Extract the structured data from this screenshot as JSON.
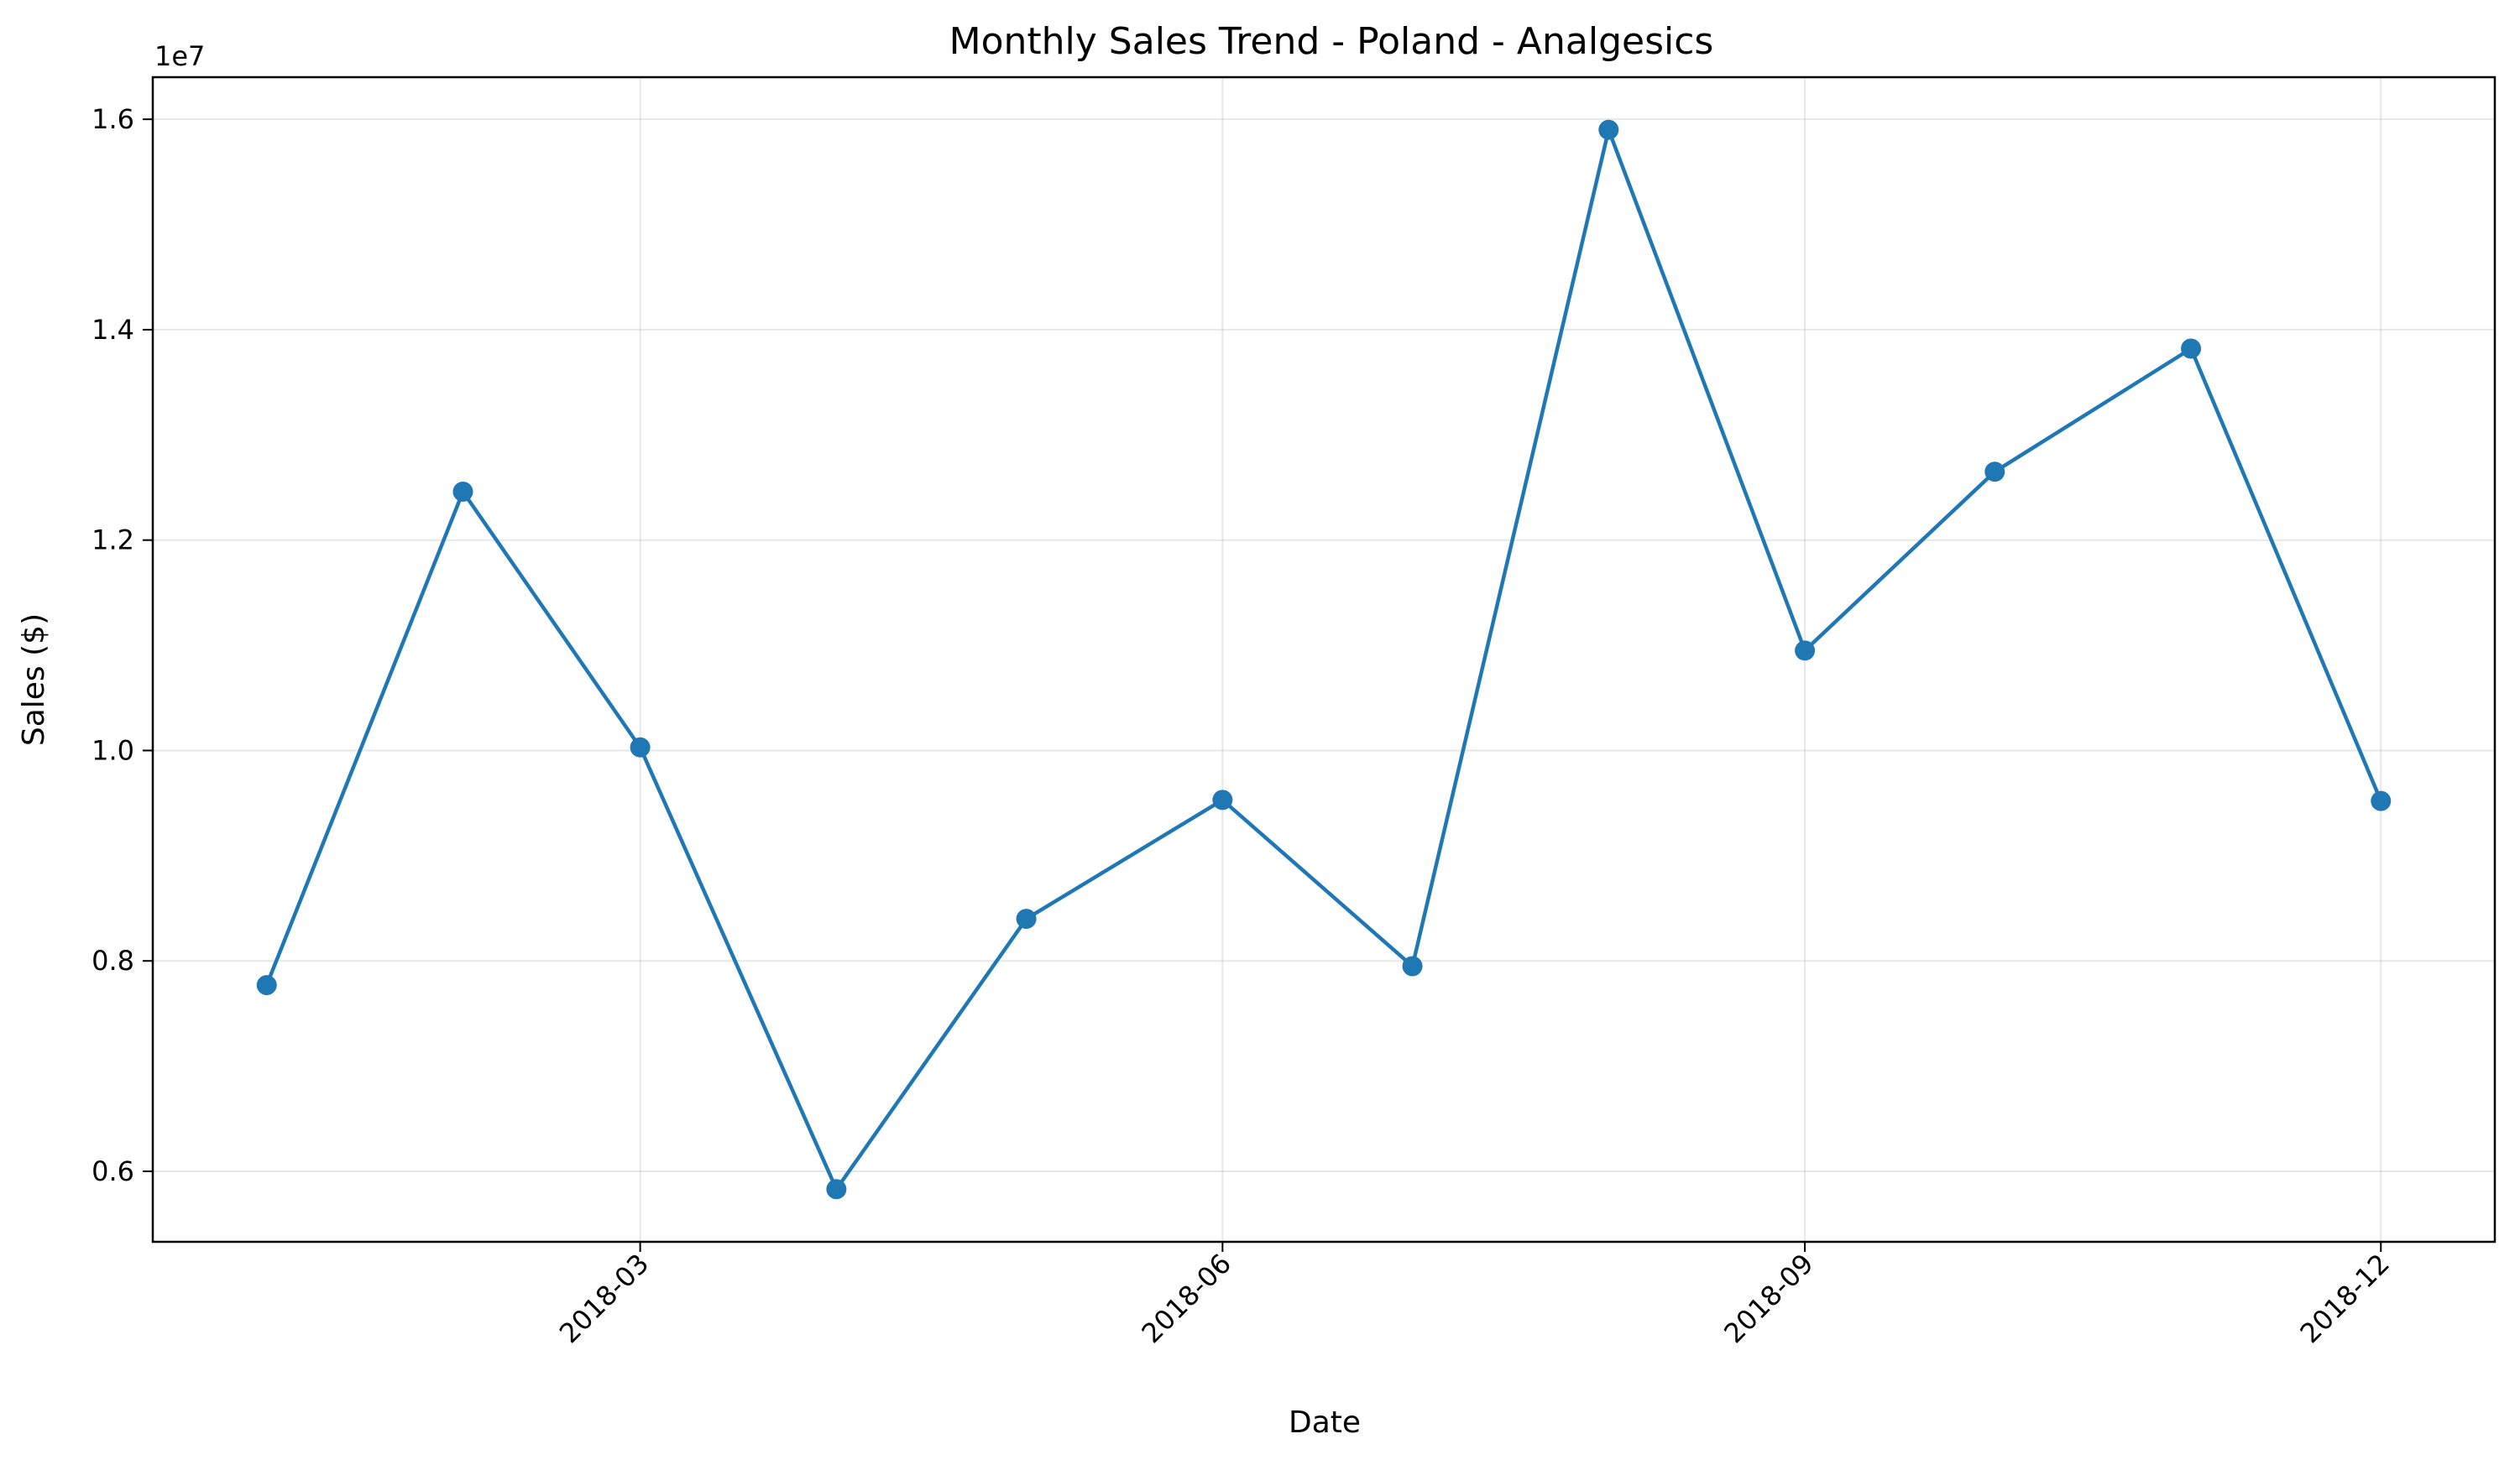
{
  "chart_data": {
    "type": "line",
    "title": "Monthly Sales Trend - Poland - Analgesics",
    "xlabel": "Date",
    "ylabel": "Sales ($)",
    "y_offset_label": "1e7",
    "x": [
      "2018-01-01",
      "2018-02-01",
      "2018-03-01",
      "2018-04-01",
      "2018-05-01",
      "2018-06-01",
      "2018-07-01",
      "2018-08-01",
      "2018-09-01",
      "2018-10-01",
      "2018-11-01",
      "2018-12-01"
    ],
    "series": [
      {
        "values": [
          7770000,
          12460000,
          10030000,
          5830000,
          8400000,
          9530000,
          7950000,
          15900000,
          10950000,
          12650000,
          13820000,
          9520000
        ],
        "color": "#1f77b4",
        "marker": "circle"
      }
    ],
    "x_ticks": [
      {
        "value": "2018-03-01",
        "label": "2018-03"
      },
      {
        "value": "2018-06-01",
        "label": "2018-06"
      },
      {
        "value": "2018-09-01",
        "label": "2018-09"
      },
      {
        "value": "2018-12-01",
        "label": "2018-12"
      }
    ],
    "xlim": [
      "2017-12-14",
      "2018-12-19"
    ],
    "y_ticks": [
      {
        "value": 6000000,
        "label": "0.6"
      },
      {
        "value": 8000000,
        "label": "0.8"
      },
      {
        "value": 10000000,
        "label": "1.0"
      },
      {
        "value": 12000000,
        "label": "1.2"
      },
      {
        "value": 14000000,
        "label": "1.4"
      },
      {
        "value": 16000000,
        "label": "1.6"
      }
    ],
    "ylim": [
      5330000,
      16400000
    ],
    "grid": true
  }
}
